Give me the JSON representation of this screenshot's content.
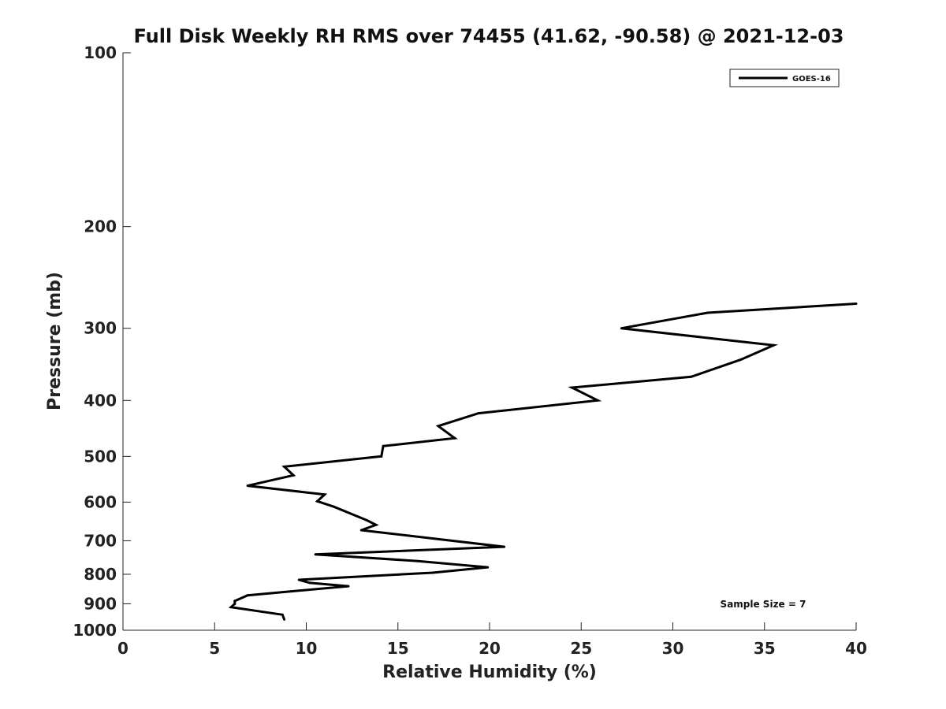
{
  "chart_data": {
    "type": "line",
    "title": "Full Disk Weekly RH RMS over 74455 (41.62, -90.58) @ 2021-12-03",
    "xlabel": "Relative Humidity (%)",
    "ylabel": "Pressure (mb)",
    "xlim": [
      0,
      40
    ],
    "ylim": [
      100,
      1000
    ],
    "y_scale": "log",
    "y_reversed": true,
    "x_ticks": [
      0,
      5,
      10,
      15,
      20,
      25,
      30,
      35,
      40
    ],
    "y_ticks": [
      100,
      200,
      300,
      400,
      500,
      600,
      700,
      800,
      900,
      1000
    ],
    "grid": false,
    "legend_position": "top-right",
    "annotation": "Sample Size = 7",
    "series": [
      {
        "name": "GOES-16",
        "color": "#000000",
        "points": [
          [
            40.0,
            272
          ],
          [
            31.9,
            282
          ],
          [
            27.2,
            300
          ],
          [
            35.5,
            321
          ],
          [
            33.7,
            340
          ],
          [
            31.0,
            364
          ],
          [
            24.5,
            380
          ],
          [
            25.9,
            400
          ],
          [
            19.4,
            421
          ],
          [
            17.2,
            443
          ],
          [
            18.1,
            465
          ],
          [
            14.2,
            480
          ],
          [
            14.1,
            500
          ],
          [
            8.8,
            521
          ],
          [
            9.3,
            539
          ],
          [
            6.8,
            562
          ],
          [
            11.0,
            582
          ],
          [
            10.6,
            598
          ],
          [
            11.5,
            611
          ],
          [
            13.3,
            645
          ],
          [
            13.8,
            657
          ],
          [
            13.0,
            671
          ],
          [
            20.8,
            717
          ],
          [
            10.5,
            739
          ],
          [
            16.1,
            759
          ],
          [
            19.9,
            778
          ],
          [
            16.9,
            795
          ],
          [
            9.6,
            818
          ],
          [
            10.2,
            828
          ],
          [
            12.3,
            839
          ],
          [
            6.8,
            870
          ],
          [
            6.1,
            890
          ],
          [
            6.1,
            900
          ],
          [
            5.9,
            912
          ],
          [
            8.7,
            940
          ],
          [
            8.8,
            958
          ]
        ]
      }
    ]
  },
  "colors": {
    "line": "#000000",
    "axis": "#222222",
    "background": "#ffffff"
  }
}
